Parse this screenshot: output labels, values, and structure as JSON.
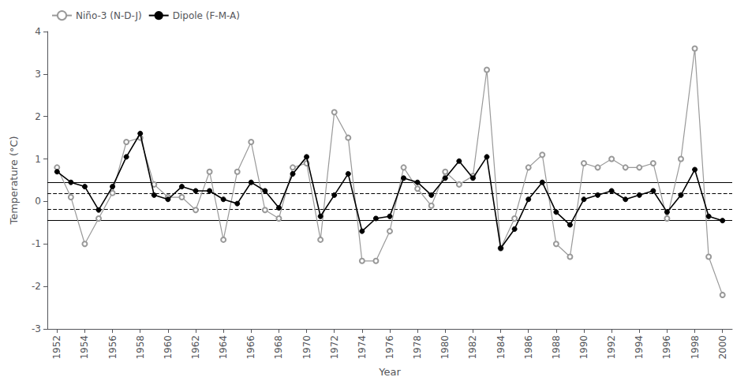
{
  "chart_data": {
    "type": "line",
    "xlabel": "Year",
    "ylabel": "Temperature (°C)",
    "x": [
      1952,
      1953,
      1954,
      1955,
      1956,
      1957,
      1958,
      1959,
      1960,
      1961,
      1962,
      1963,
      1964,
      1965,
      1966,
      1967,
      1968,
      1969,
      1970,
      1971,
      1972,
      1973,
      1974,
      1975,
      1976,
      1977,
      1978,
      1979,
      1980,
      1981,
      1982,
      1983,
      1984,
      1985,
      1986,
      1987,
      1988,
      1989,
      1990,
      1991,
      1992,
      1993,
      1994,
      1995,
      1996,
      1997,
      1998,
      1999,
      2000
    ],
    "series": [
      {
        "name": "Niño-3 (N-D-J)",
        "color": "#999999",
        "marker": "open_circle",
        "line_style": "solid",
        "values": [
          0.8,
          0.1,
          -1.0,
          -0.4,
          0.2,
          1.4,
          1.5,
          0.4,
          0.1,
          0.1,
          -0.2,
          0.7,
          -0.9,
          0.7,
          1.4,
          -0.2,
          -0.4,
          0.8,
          0.9,
          -0.9,
          2.1,
          1.5,
          -1.4,
          -1.4,
          -0.7,
          0.8,
          0.3,
          -0.1,
          0.7,
          0.4,
          0.6,
          3.1,
          -1.1,
          -0.4,
          0.8,
          1.1,
          -1.0,
          -1.3,
          0.9,
          0.8,
          1.0,
          0.8,
          0.8,
          0.9,
          -0.4,
          1.0,
          3.6,
          -1.3,
          -2.2
        ]
      },
      {
        "name": "Dipole (F-M-A)",
        "color": "#000000",
        "marker": "circle",
        "line_style": "solid",
        "values": [
          0.7,
          0.45,
          0.35,
          -0.2,
          0.35,
          1.05,
          1.6,
          0.15,
          0.05,
          0.35,
          0.25,
          0.25,
          0.05,
          -0.05,
          0.45,
          0.25,
          -0.15,
          0.65,
          1.05,
          -0.35,
          0.15,
          0.65,
          -0.7,
          -0.4,
          -0.35,
          0.55,
          0.45,
          0.15,
          0.55,
          0.95,
          0.55,
          1.05,
          -1.1,
          -0.65,
          0.05,
          0.45,
          -0.25,
          -0.55,
          0.05,
          0.15,
          0.25,
          0.05,
          0.15,
          0.25,
          -0.25,
          0.15,
          0.75,
          -0.35,
          -0.45
        ]
      }
    ],
    "reference_lines": [
      {
        "value": 0.45,
        "color": "#000000",
        "line_style": "solid"
      },
      {
        "value": -0.45,
        "color": "#000000",
        "line_style": "solid"
      },
      {
        "value": 0.18,
        "color": "#000000",
        "line_style": "dashed"
      },
      {
        "value": -0.18,
        "color": "#000000",
        "line_style": "dashed"
      }
    ],
    "xlim": [
      1951.3,
      2000.7
    ],
    "xticks": [
      1952,
      1954,
      1956,
      1958,
      1960,
      1962,
      1964,
      1966,
      1968,
      1970,
      1972,
      1974,
      1976,
      1978,
      1980,
      1982,
      1984,
      1986,
      1988,
      1990,
      1992,
      1994,
      1996,
      1998,
      2000
    ],
    "ylim": [
      -3.0,
      4.0
    ],
    "yticks": [
      -3,
      -2,
      -1,
      0,
      1,
      2,
      3,
      4
    ],
    "grid": false,
    "legend": "upper left"
  }
}
